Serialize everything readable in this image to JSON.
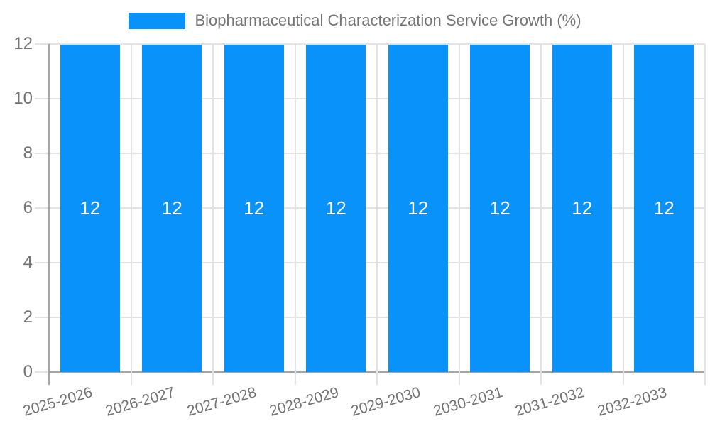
{
  "legend": {
    "label": "Biopharmaceutical Characterization Service Growth (%)",
    "swatch_color": "#0892fa"
  },
  "chart_data": {
    "type": "bar",
    "title": "Biopharmaceutical Characterization Service Growth (%)",
    "categories": [
      "2025-2026",
      "2026-2027",
      "2027-2028",
      "2028-2029",
      "2029-2030",
      "2030-2031",
      "2031-2032",
      "2032-2033"
    ],
    "values": [
      12,
      12,
      12,
      12,
      12,
      12,
      12,
      12
    ],
    "value_labels": [
      "12",
      "12",
      "12",
      "12",
      "12",
      "12",
      "12",
      "12"
    ],
    "xlabel": "",
    "ylabel": "",
    "ylim": [
      0,
      12
    ],
    "yticks": [
      0,
      2,
      4,
      6,
      8,
      10,
      12
    ],
    "ytick_labels": [
      "0",
      "2",
      "4",
      "6",
      "8",
      "10",
      "12"
    ],
    "grid": true,
    "legend_position": "top",
    "colors": {
      "bar": "#0892fa",
      "grid": "#e3e3e3",
      "axis": "#a6a6a6",
      "tick_text": "#737373",
      "legend_text": "#757575",
      "value_label": "#ffffff",
      "background": "#ffffff"
    }
  }
}
